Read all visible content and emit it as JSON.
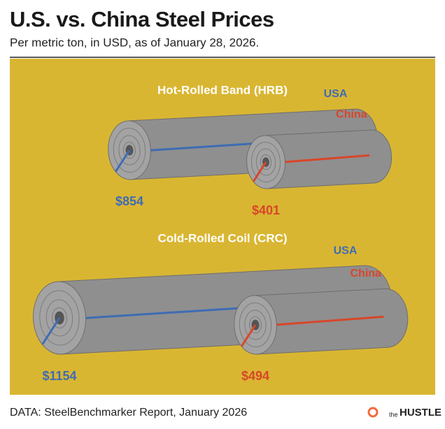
{
  "title": "U.S. vs. China Steel Prices",
  "subtitle": "Per metric ton, in USD, as of January 28, 2026.",
  "source": "DATA: SteelBenchmarker Report, January 2026",
  "brand": {
    "prefix": "the",
    "name": "HUSTLE"
  },
  "chart_data": {
    "type": "bar",
    "categories": [
      "Hot-Rolled Band (HRB)",
      "Cold-Rolled Coil (CRC)"
    ],
    "series": [
      {
        "name": "USA",
        "color": "#3e6cb4",
        "values": [
          854,
          1154
        ],
        "value_labels": [
          "$854",
          "$1154"
        ]
      },
      {
        "name": "China",
        "color": "#d8462a",
        "values": [
          401,
          494
        ],
        "value_labels": [
          "$401",
          "$494"
        ]
      }
    ]
  }
}
